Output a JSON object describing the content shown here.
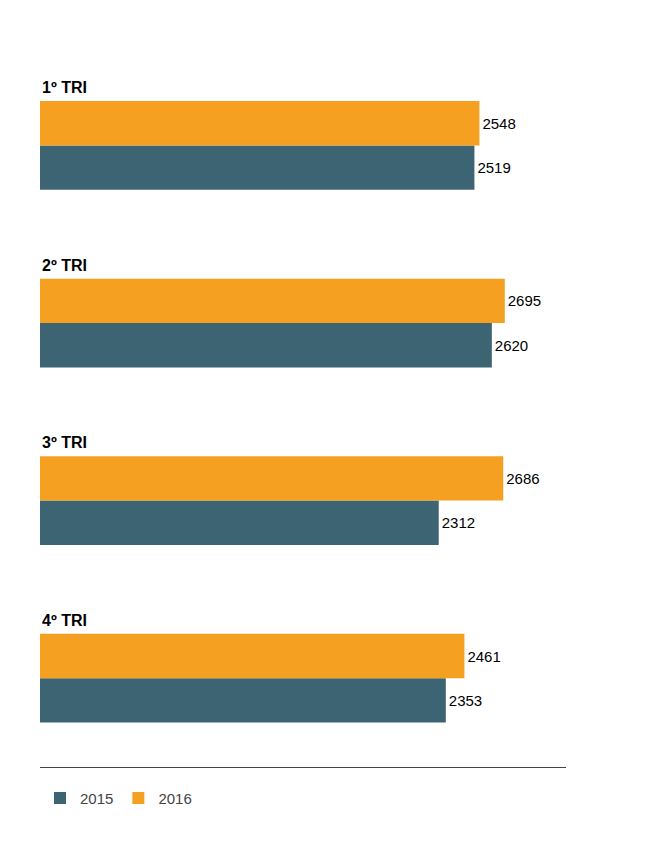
{
  "chart_data": {
    "type": "bar",
    "orientation": "horizontal",
    "categories": [
      "1º TRI",
      "2º TRI",
      "3º TRI",
      "4º TRI"
    ],
    "series": [
      {
        "name": "2015",
        "color": "#3d6473",
        "values": [
          2519,
          2620,
          2312,
          2353
        ]
      },
      {
        "name": "2016",
        "color": "#f5a020",
        "values": [
          2548,
          2695,
          2686,
          2461
        ]
      }
    ],
    "xlim": [
      0,
      3050
    ],
    "data_labels": true,
    "tick_labels": false,
    "grid": false,
    "legend": "lower left"
  }
}
